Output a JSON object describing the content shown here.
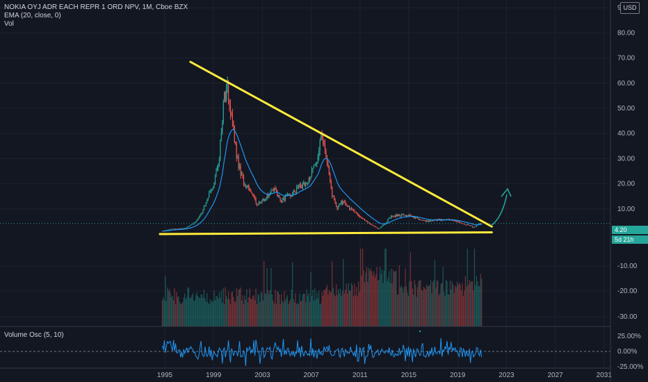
{
  "legend": {
    "symbol_line": "NOKIA OYJ ADR EACH REPR 1 ORD NPV, 1M, Cboe BZX",
    "ema_line": "EMA (20, close, 0)",
    "vol_line": "Vol"
  },
  "oscillator_legend": "Volume Osc (5, 10)",
  "currency_label": "USD",
  "price_label": "4.20",
  "countdown_label": "5d 21h",
  "colors": {
    "background": "#131722",
    "grid": "#1e222d",
    "up": "#26a69a",
    "down": "#ef5350",
    "ema": "#2196f3",
    "trendline": "#ffeb3b",
    "arrow": "#26a69a",
    "osc": "#2196f3"
  },
  "chart_data": [
    {
      "type": "candlestick",
      "title": "",
      "x_ticks": [
        "1995",
        "1999",
        "2003",
        "2007",
        "2011",
        "2015",
        "2019",
        "2023",
        "2027",
        "2031"
      ],
      "y_ticks": [
        "90.00",
        "80.00",
        "70.00",
        "60.00",
        "50.00",
        "40.00",
        "30.00",
        "20.00",
        "10.00"
      ],
      "ylim": [
        0,
        93
      ],
      "series": [
        {
          "name": "NOKIA OYJ ADR EACH REPR 1 ORD NPV",
          "points": [
            {
              "x": 1994.8,
              "y": 1.2
            },
            {
              "x": 1995.5,
              "y": 2.0
            },
            {
              "x": 1996.5,
              "y": 2.2
            },
            {
              "x": 1997.0,
              "y": 3.0
            },
            {
              "x": 1997.5,
              "y": 5.0
            },
            {
              "x": 1998.0,
              "y": 8.0
            },
            {
              "x": 1998.5,
              "y": 14.0
            },
            {
              "x": 1999.0,
              "y": 20.0
            },
            {
              "x": 1999.5,
              "y": 32.0
            },
            {
              "x": 1999.8,
              "y": 52.0
            },
            {
              "x": 2000.1,
              "y": 60.0
            },
            {
              "x": 2000.5,
              "y": 45.0
            },
            {
              "x": 2001.0,
              "y": 28.0
            },
            {
              "x": 2001.5,
              "y": 20.0
            },
            {
              "x": 2002.0,
              "y": 18.0
            },
            {
              "x": 2002.5,
              "y": 12.0
            },
            {
              "x": 2003.0,
              "y": 13.0
            },
            {
              "x": 2003.5,
              "y": 16.0
            },
            {
              "x": 2004.0,
              "y": 18.0
            },
            {
              "x": 2004.5,
              "y": 13.0
            },
            {
              "x": 2005.0,
              "y": 15.0
            },
            {
              "x": 2005.5,
              "y": 16.0
            },
            {
              "x": 2006.0,
              "y": 19.0
            },
            {
              "x": 2006.5,
              "y": 20.0
            },
            {
              "x": 2007.0,
              "y": 24.0
            },
            {
              "x": 2007.5,
              "y": 30.0
            },
            {
              "x": 2007.9,
              "y": 40.0
            },
            {
              "x": 2008.3,
              "y": 30.0
            },
            {
              "x": 2008.7,
              "y": 16.0
            },
            {
              "x": 2009.1,
              "y": 10.0
            },
            {
              "x": 2009.5,
              "y": 13.0
            },
            {
              "x": 2010.0,
              "y": 11.0
            },
            {
              "x": 2010.5,
              "y": 9.0
            },
            {
              "x": 2011.0,
              "y": 7.0
            },
            {
              "x": 2011.5,
              "y": 5.0
            },
            {
              "x": 2012.0,
              "y": 3.5
            },
            {
              "x": 2012.5,
              "y": 2.0
            },
            {
              "x": 2013.0,
              "y": 4.0
            },
            {
              "x": 2013.5,
              "y": 7.0
            },
            {
              "x": 2014.0,
              "y": 7.5
            },
            {
              "x": 2015.0,
              "y": 7.5
            },
            {
              "x": 2016.0,
              "y": 5.5
            },
            {
              "x": 2016.5,
              "y": 5.0
            },
            {
              "x": 2017.0,
              "y": 5.5
            },
            {
              "x": 2018.0,
              "y": 5.8
            },
            {
              "x": 2018.5,
              "y": 5.5
            },
            {
              "x": 2019.0,
              "y": 5.0
            },
            {
              "x": 2019.5,
              "y": 4.0
            },
            {
              "x": 2020.0,
              "y": 3.5
            },
            {
              "x": 2020.3,
              "y": 2.5
            },
            {
              "x": 2020.7,
              "y": 4.0
            },
            {
              "x": 2021.0,
              "y": 4.2
            }
          ]
        }
      ]
    },
    {
      "type": "bar",
      "title": "Vol",
      "y_ticks": [
        "-10.00",
        "-20.00",
        "-30.00"
      ]
    },
    {
      "type": "line",
      "title": "Volume Osc (5, 10)",
      "y_ticks": [
        "25.00%",
        "0.00%",
        "-25.00%"
      ],
      "ylim": [
        -25,
        25
      ]
    }
  ]
}
